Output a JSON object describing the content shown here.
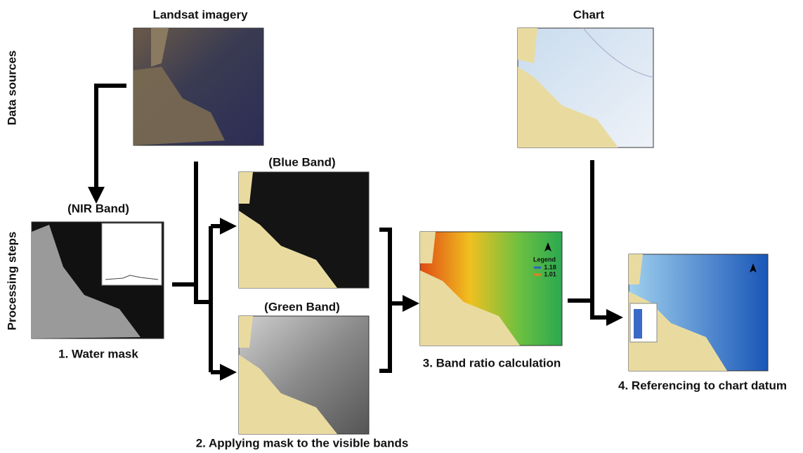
{
  "row_labels": [
    "Data sources",
    "Processing steps"
  ],
  "nodes": [
    {
      "title": "Landsat imagery"
    },
    {
      "title": "Chart"
    },
    {
      "title": "(NIR Band)",
      "caption": "1. Water mask"
    },
    {
      "title": "(Blue Band)"
    },
    {
      "title": "(Green Band)",
      "caption": "2. Applying mask to the visible bands"
    },
    {
      "caption": "3. Band ratio calculation",
      "legend": {
        "title": "Legend",
        "items": [
          "1.18",
          "1.01"
        ]
      }
    },
    {
      "caption": "4. Referencing to chart datum"
    }
  ]
}
